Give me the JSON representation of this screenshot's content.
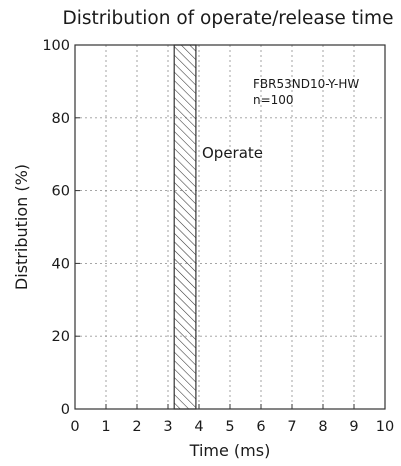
{
  "chart_data": {
    "type": "bar",
    "title": "Distribution of operate/release time",
    "xlabel": "Time (ms)",
    "ylabel": "Distribution (%)",
    "xlim": [
      0,
      10
    ],
    "ylim": [
      0,
      100
    ],
    "x_ticks": [
      0,
      1,
      2,
      3,
      4,
      5,
      6,
      7,
      8,
      9,
      10
    ],
    "y_ticks": [
      0,
      20,
      40,
      60,
      80,
      100
    ],
    "grid": true,
    "annotations": [
      "FBR53ND10-Y-HW",
      "n=100"
    ],
    "series": [
      {
        "name": "Operate",
        "x_start": 3.2,
        "x_end": 3.9,
        "value": 100,
        "pattern": "hatched"
      }
    ]
  }
}
